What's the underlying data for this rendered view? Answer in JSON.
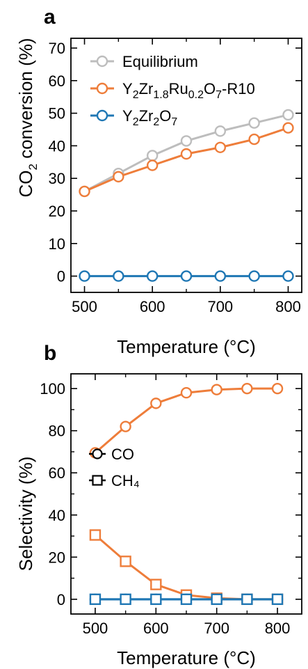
{
  "chart_data": [
    {
      "panel": "a",
      "type": "line",
      "xlabel": "Temperature (°C)",
      "ylabel": "CO₂ conversion (%)",
      "xlim": [
        480,
        820
      ],
      "ylim": [
        -5,
        73
      ],
      "xticks": [
        500,
        600,
        700,
        800
      ],
      "xticks_minor": [
        550,
        650,
        750
      ],
      "yticks": [
        0,
        10,
        20,
        30,
        40,
        50,
        60,
        70
      ],
      "grid": false,
      "legend_placement": "top-left",
      "x": [
        500,
        550,
        600,
        650,
        700,
        750,
        800
      ],
      "series": [
        {
          "name": "Equilibrium",
          "label_parts": [
            "Equilibrium"
          ],
          "color": "#bdbdbd",
          "marker": "circle",
          "values": [
            26,
            31.5,
            37,
            41.5,
            44.5,
            47,
            49.5
          ]
        },
        {
          "name": "Y2Zr1.8Ru0.2O7-R10",
          "label_parts": [
            "Y",
            "2",
            "Zr",
            "1.8",
            "Ru",
            "0.2",
            "O",
            "7",
            "-R10"
          ],
          "color": "#ee7d3a",
          "marker": "circle",
          "values": [
            26,
            30.5,
            34,
            37.5,
            39.5,
            42,
            45.5
          ]
        },
        {
          "name": "Y2Zr2O7",
          "label_parts": [
            "Y",
            "2",
            "Zr",
            "2",
            "O",
            "7"
          ],
          "color": "#1f77b4",
          "marker": "circle",
          "values": [
            0,
            0,
            0,
            0,
            0,
            0,
            0
          ]
        }
      ]
    },
    {
      "panel": "b",
      "type": "line",
      "xlabel": "Temperature (°C)",
      "ylabel": "Selectivity (%)",
      "xlim": [
        460,
        840
      ],
      "ylim": [
        -7,
        107
      ],
      "xticks": [
        500,
        600,
        700,
        800
      ],
      "xticks_minor": [
        550,
        650,
        750
      ],
      "yticks": [
        0,
        20,
        40,
        60,
        80,
        100
      ],
      "yticks_minor": [
        10,
        30,
        50,
        70,
        90
      ],
      "grid": false,
      "legend_placement": "center-left",
      "legend": [
        {
          "label": "CO",
          "marker": "circle"
        },
        {
          "label": "CH₄",
          "marker": "square"
        }
      ],
      "x": [
        500,
        550,
        600,
        650,
        700,
        750,
        800
      ],
      "series": [
        {
          "name": "CO",
          "color": "#ee7d3a",
          "marker": "circle",
          "values": [
            69.5,
            82,
            93,
            98,
            99.5,
            100,
            100
          ]
        },
        {
          "name": "CH4",
          "color": "#ee7d3a",
          "marker": "square",
          "values": [
            30.5,
            18,
            7,
            2,
            0.5,
            0,
            0
          ]
        },
        {
          "name": "CO",
          "color": "#1f77b4",
          "marker": "circle",
          "values": [
            0,
            0,
            0,
            0,
            0,
            0,
            0
          ]
        },
        {
          "name": "CH4",
          "color": "#1f77b4",
          "marker": "square",
          "values": [
            0,
            0,
            0,
            0,
            0,
            0,
            0
          ]
        }
      ]
    }
  ]
}
